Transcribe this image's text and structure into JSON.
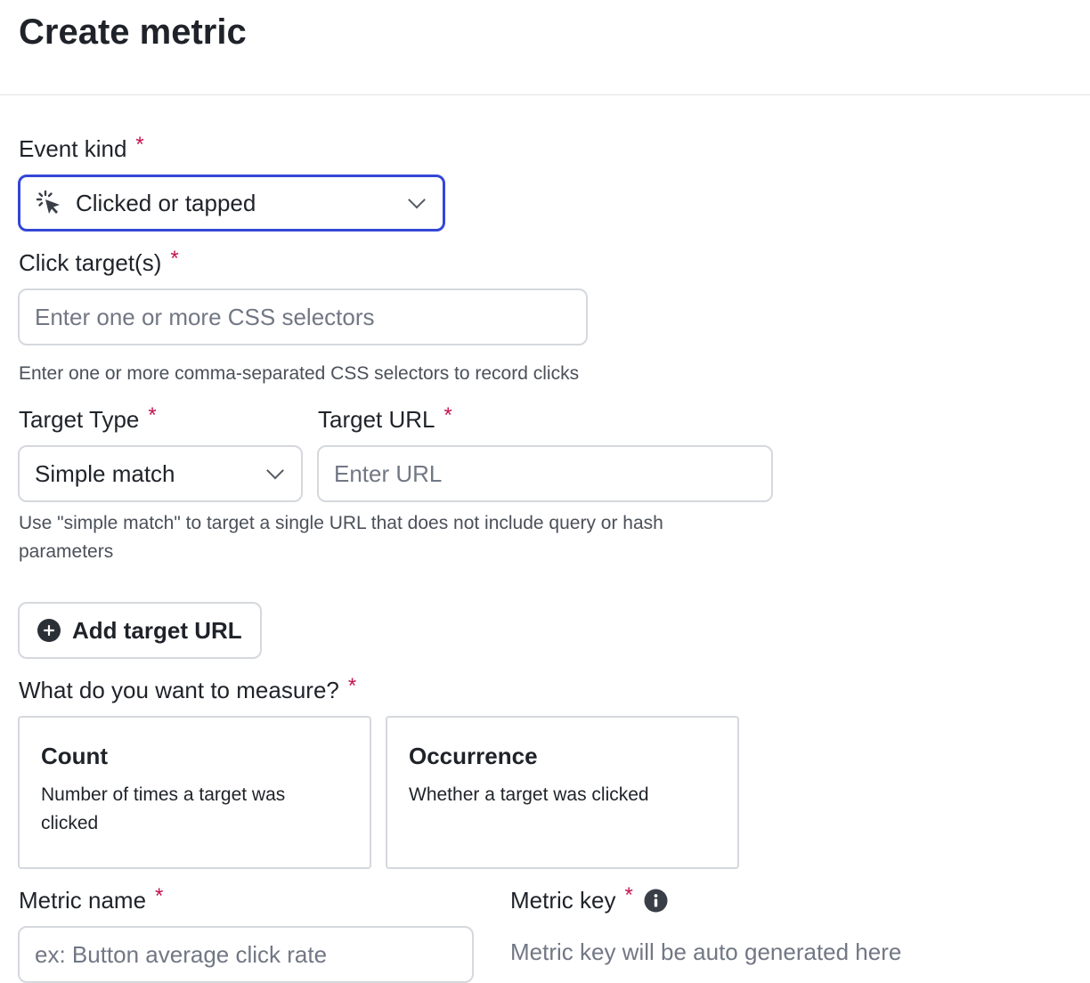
{
  "page": {
    "title": "Create metric"
  },
  "event_kind": {
    "label": "Event kind",
    "required": "*",
    "value": "Clicked or tapped",
    "icon": "cursor-click-icon"
  },
  "click_targets": {
    "label": "Click target(s)",
    "required": "*",
    "placeholder": "Enter one or more CSS selectors",
    "help": "Enter one or more comma-separated CSS selectors to record clicks"
  },
  "target_type": {
    "label": "Target Type",
    "required": "*",
    "value": "Simple match"
  },
  "target_url": {
    "label": "Target URL",
    "required": "*",
    "placeholder": "Enter URL",
    "help": "Use \"simple match\" to target a single URL that does not include query or hash parameters"
  },
  "add_target_url": {
    "label": "Add target URL",
    "icon": "plus-circle-icon"
  },
  "measure": {
    "label": "What do you want to measure?",
    "required": "*",
    "options": [
      {
        "title": "Count",
        "description": "Number of times a target was clicked"
      },
      {
        "title": "Occurrence",
        "description": "Whether a target was clicked"
      }
    ]
  },
  "metric_name": {
    "label": "Metric name",
    "required": "*",
    "placeholder": "ex: Button average click rate"
  },
  "metric_key": {
    "label": "Metric key",
    "required": "*",
    "placeholder": "Metric key will be auto generated here",
    "icon": "info-icon"
  },
  "colors": {
    "accent": "#3446d6",
    "required": "#c4134f"
  }
}
